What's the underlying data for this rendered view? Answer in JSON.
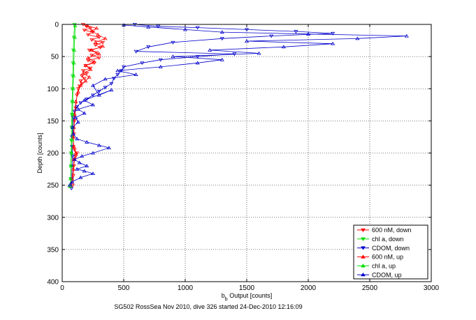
{
  "chart_data": {
    "type": "line",
    "title": "",
    "xlabel_main": "b",
    "xlabel_sub": "b",
    "xlabel_rest": " Output [counts]",
    "ylabel": "Depth [counts]",
    "caption": "SG502 RossSea Nov 2010, dive 326 started 24-Dec-2010 12:16:09",
    "xlim": [
      0,
      3000
    ],
    "ylim": [
      0,
      400
    ],
    "y_reversed": true,
    "x_ticks": [
      0,
      500,
      1000,
      1500,
      2000,
      2500,
      3000
    ],
    "y_ticks": [
      0,
      50,
      100,
      150,
      200,
      250,
      300,
      350,
      400
    ],
    "grid": true,
    "legend_position": "bottom-right",
    "series": [
      {
        "name": "600 nM, down",
        "color": "#ff0000",
        "marker": "triangle-down",
        "points": [
          [
            170,
            0
          ],
          [
            200,
            3
          ],
          [
            230,
            6
          ],
          [
            180,
            9
          ],
          [
            250,
            12
          ],
          [
            210,
            16
          ],
          [
            300,
            20
          ],
          [
            240,
            24
          ],
          [
            330,
            28
          ],
          [
            270,
            32
          ],
          [
            310,
            36
          ],
          [
            220,
            40
          ],
          [
            280,
            44
          ],
          [
            240,
            48
          ],
          [
            300,
            52
          ],
          [
            210,
            56
          ],
          [
            260,
            60
          ],
          [
            190,
            64
          ],
          [
            230,
            68
          ],
          [
            170,
            72
          ],
          [
            200,
            76
          ],
          [
            160,
            80
          ],
          [
            180,
            84
          ],
          [
            150,
            88
          ],
          [
            160,
            92
          ],
          [
            140,
            96
          ],
          [
            130,
            100
          ],
          [
            120,
            110
          ],
          [
            110,
            130
          ],
          [
            100,
            150
          ],
          [
            95,
            170
          ],
          [
            90,
            190
          ],
          [
            100,
            195
          ],
          [
            120,
            200
          ],
          [
            110,
            205
          ],
          [
            100,
            210
          ],
          [
            95,
            220
          ],
          [
            90,
            235
          ],
          [
            85,
            250
          ]
        ]
      },
      {
        "name": "chl a, down",
        "color": "#00dd00",
        "marker": "triangle-down",
        "points": [
          [
            100,
            0
          ],
          [
            95,
            20
          ],
          [
            90,
            40
          ],
          [
            88,
            60
          ],
          [
            86,
            80
          ],
          [
            84,
            100
          ],
          [
            80,
            120
          ],
          [
            78,
            140
          ],
          [
            76,
            160
          ],
          [
            74,
            180
          ],
          [
            72,
            200
          ],
          [
            70,
            220
          ],
          [
            68,
            240
          ],
          [
            66,
            252
          ]
        ]
      },
      {
        "name": "CDOM, down",
        "color": "#0000cc",
        "marker": "triangle-down",
        "points": [
          [
            590,
            0
          ],
          [
            780,
            3
          ],
          [
            1100,
            5
          ],
          [
            1500,
            8
          ],
          [
            1900,
            11
          ],
          [
            2200,
            14
          ],
          [
            1700,
            18
          ],
          [
            1300,
            22
          ],
          [
            900,
            28
          ],
          [
            700,
            35
          ],
          [
            600,
            42
          ],
          [
            1400,
            46
          ],
          [
            1100,
            50
          ],
          [
            800,
            55
          ],
          [
            650,
            60
          ],
          [
            500,
            66
          ],
          [
            480,
            72
          ],
          [
            450,
            78
          ],
          [
            420,
            84
          ],
          [
            400,
            92
          ],
          [
            350,
            98
          ],
          [
            300,
            104
          ],
          [
            250,
            110
          ],
          [
            200,
            116
          ],
          [
            150,
            122
          ],
          [
            120,
            128
          ],
          [
            100,
            135
          ],
          [
            90,
            145
          ],
          [
            85,
            160
          ],
          [
            80,
            175
          ],
          [
            80,
            190
          ],
          [
            85,
            205
          ],
          [
            80,
            220
          ],
          [
            78,
            240
          ],
          [
            75,
            255
          ]
        ]
      },
      {
        "name": "600 nM, up",
        "color": "#ff0000",
        "marker": "triangle-up",
        "points": [
          [
            65,
            252
          ],
          [
            80,
            240
          ],
          [
            90,
            225
          ],
          [
            95,
            210
          ],
          [
            110,
            200
          ],
          [
            95,
            190
          ],
          [
            90,
            175
          ],
          [
            95,
            160
          ],
          [
            100,
            140
          ],
          [
            110,
            120
          ],
          [
            130,
            105
          ],
          [
            150,
            95
          ],
          [
            190,
            88
          ],
          [
            220,
            82
          ],
          [
            170,
            76
          ],
          [
            230,
            70
          ],
          [
            190,
            64
          ],
          [
            260,
            58
          ],
          [
            210,
            52
          ],
          [
            300,
            46
          ],
          [
            240,
            40
          ],
          [
            330,
            34
          ],
          [
            270,
            28
          ],
          [
            350,
            22
          ],
          [
            290,
            16
          ],
          [
            240,
            10
          ],
          [
            280,
            6
          ],
          [
            200,
            2
          ]
        ]
      },
      {
        "name": "chl a, up",
        "color": "#00dd00",
        "marker": "triangle-up",
        "points": [
          [
            64,
            252
          ],
          [
            68,
            240
          ],
          [
            72,
            220
          ],
          [
            76,
            200
          ],
          [
            80,
            180
          ],
          [
            82,
            160
          ],
          [
            84,
            140
          ],
          [
            86,
            120
          ],
          [
            88,
            100
          ],
          [
            92,
            80
          ],
          [
            95,
            60
          ],
          [
            98,
            40
          ],
          [
            102,
            20
          ],
          [
            105,
            2
          ]
        ]
      },
      {
        "name": "CDOM, up",
        "color": "#0000cc",
        "marker": "triangle-up",
        "points": [
          [
            60,
            250
          ],
          [
            80,
            245
          ],
          [
            150,
            238
          ],
          [
            250,
            232
          ],
          [
            180,
            228
          ],
          [
            120,
            225
          ],
          [
            200,
            220
          ],
          [
            140,
            215
          ],
          [
            100,
            210
          ],
          [
            160,
            205
          ],
          [
            250,
            200
          ],
          [
            380,
            192
          ],
          [
            300,
            188
          ],
          [
            200,
            183
          ],
          [
            120,
            178
          ],
          [
            90,
            170
          ],
          [
            85,
            160
          ],
          [
            130,
            152
          ],
          [
            110,
            145
          ],
          [
            180,
            138
          ],
          [
            130,
            132
          ],
          [
            250,
            125
          ],
          [
            180,
            118
          ],
          [
            400,
            102
          ],
          [
            300,
            110
          ],
          [
            250,
            95
          ],
          [
            350,
            85
          ],
          [
            600,
            78
          ],
          [
            450,
            72
          ],
          [
            800,
            66
          ],
          [
            1100,
            60
          ],
          [
            1300,
            55
          ],
          [
            900,
            50
          ],
          [
            1600,
            45
          ],
          [
            1200,
            40
          ],
          [
            1800,
            35
          ],
          [
            2200,
            30
          ],
          [
            1500,
            26
          ],
          [
            2400,
            22
          ],
          [
            2800,
            18
          ],
          [
            2000,
            15
          ],
          [
            1300,
            12
          ],
          [
            1000,
            8
          ],
          [
            700,
            4
          ],
          [
            500,
            1
          ]
        ]
      }
    ]
  }
}
